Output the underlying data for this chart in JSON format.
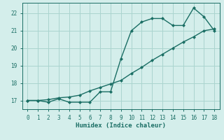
{
  "xlabel": "Humidex (Indice chaleur)",
  "background_color": "#d4eeeb",
  "grid_color": "#aad4cf",
  "line_color": "#1a6e64",
  "xlim": [
    -0.5,
    18.5
  ],
  "ylim": [
    16.5,
    22.6
  ],
  "xticks": [
    0,
    1,
    2,
    3,
    4,
    5,
    6,
    7,
    8,
    9,
    10,
    11,
    12,
    13,
    14,
    15,
    16,
    17,
    18
  ],
  "yticks": [
    17,
    18,
    19,
    20,
    21,
    22
  ],
  "curve1_x": [
    0,
    1,
    2,
    3,
    4,
    5,
    6,
    7,
    8,
    9,
    10,
    11,
    12,
    13,
    14,
    15,
    16,
    17,
    18
  ],
  "curve1_y": [
    17.0,
    17.0,
    16.9,
    17.1,
    16.9,
    16.9,
    16.9,
    17.5,
    17.5,
    19.4,
    21.0,
    21.5,
    21.7,
    21.7,
    21.3,
    21.3,
    22.3,
    21.8,
    21.0
  ],
  "curve2_x": [
    0,
    1,
    2,
    3,
    4,
    5,
    6,
    7,
    8,
    9,
    10,
    11,
    12,
    13,
    14,
    15,
    16,
    17,
    18
  ],
  "curve2_y": [
    17.0,
    17.0,
    17.05,
    17.15,
    17.2,
    17.3,
    17.55,
    17.75,
    17.95,
    18.15,
    18.55,
    18.9,
    19.3,
    19.65,
    20.0,
    20.35,
    20.65,
    21.0,
    21.1
  ],
  "marker": "D",
  "marker_size": 2.0,
  "line_width": 1.0,
  "tick_fontsize": 5.5,
  "label_fontsize": 6.5
}
